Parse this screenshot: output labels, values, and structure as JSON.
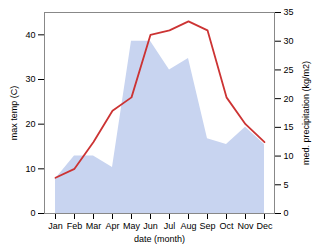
{
  "chart_data": {
    "type": "line",
    "xlabel": "date (month)",
    "ylabel": "max temp (C)",
    "y2label": "med. precipitation (kg/m2)",
    "categories": [
      "Jan",
      "Feb",
      "Mar",
      "Apr",
      "May",
      "Jun",
      "Jul",
      "Aug",
      "Sep",
      "Oct",
      "Nov",
      "Dec"
    ],
    "series": [
      {
        "type": "area",
        "axis": "y2",
        "color": "#c8d4f0",
        "values": [
          6.0,
          10.0,
          10.0,
          8.0,
          30.0,
          30.0,
          25.0,
          27.0,
          13.0,
          12.0,
          15.0,
          12.0
        ]
      },
      {
        "type": "line",
        "axis": "y",
        "color": "#cc3333",
        "values": [
          8.0,
          10.0,
          16.0,
          23.0,
          26.0,
          40.0,
          41.0,
          43.0,
          41.0,
          26.0,
          20.0,
          16.0
        ]
      }
    ],
    "ylim": [
      0,
      45
    ],
    "yticks": [
      0,
      10,
      20,
      30,
      40
    ],
    "y2lim": [
      0,
      35
    ],
    "y2ticks": [
      0,
      5,
      10,
      15,
      20,
      25,
      30,
      35
    ],
    "grid": false
  }
}
